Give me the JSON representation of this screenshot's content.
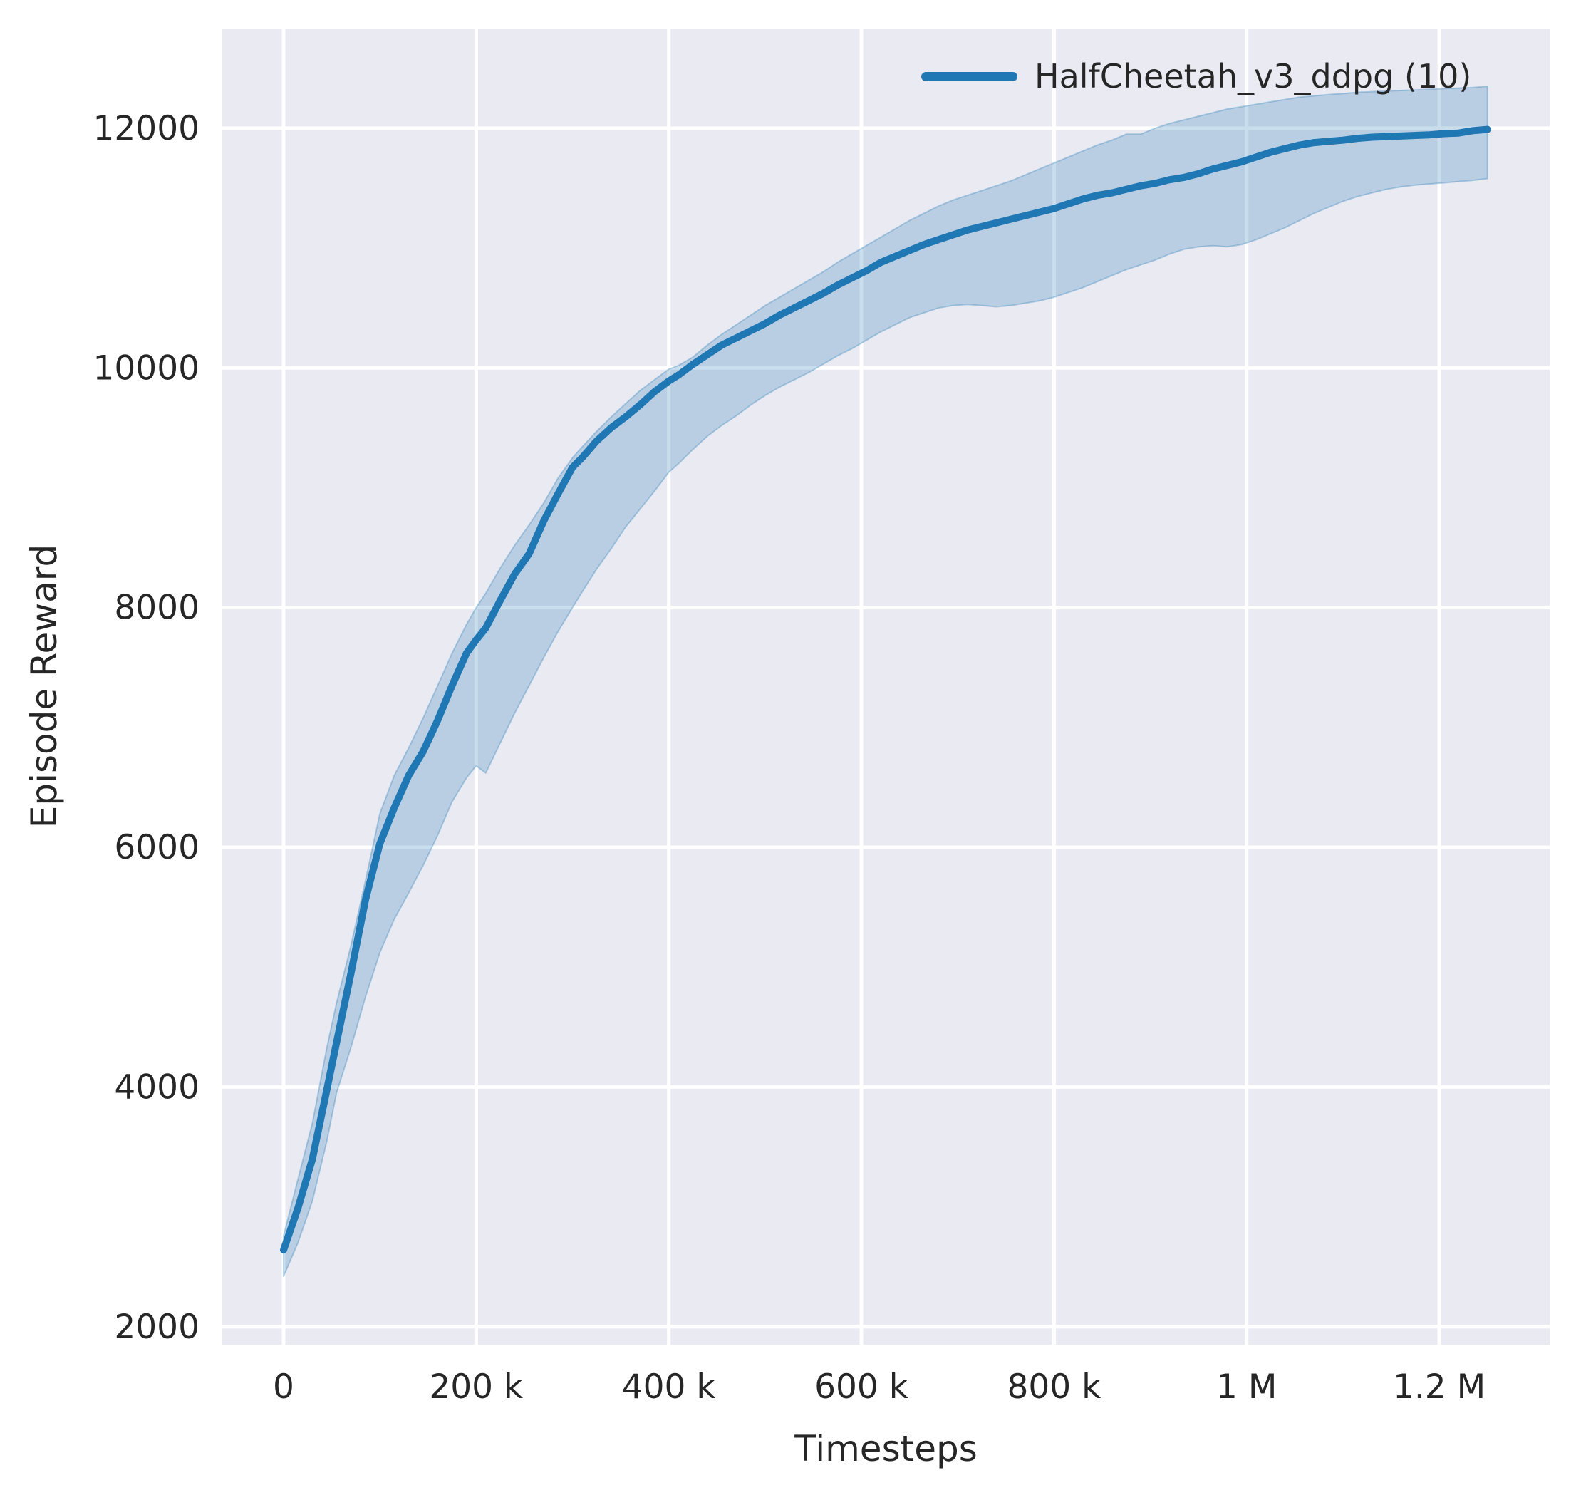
{
  "figure": {
    "background": "#ffffff",
    "plot_background": "#eaeaf2",
    "grid_color": "#ffffff",
    "text_color": "#262626"
  },
  "chart_data": {
    "type": "line",
    "title": "",
    "xlabel": "Timesteps",
    "ylabel": "Episode Reward",
    "grid": true,
    "legend_position": "upper right",
    "legend": [
      {
        "label": "HalfCheetah_v3_ddpg (10)",
        "color": "#1f77b4"
      }
    ],
    "xlim": [
      -63600,
      1314600
    ],
    "ylim": [
      1850,
      12832
    ],
    "x_ticks": [
      {
        "v": 0,
        "label": "0"
      },
      {
        "v": 200000,
        "label": "200 k"
      },
      {
        "v": 400000,
        "label": "400 k"
      },
      {
        "v": 600000,
        "label": "600 k"
      },
      {
        "v": 800000,
        "label": "800 k"
      },
      {
        "v": 1000000,
        "label": "1 M"
      },
      {
        "v": 1200000,
        "label": "1.2 M"
      }
    ],
    "y_ticks": [
      {
        "v": 2000,
        "label": "2000"
      },
      {
        "v": 4000,
        "label": "4000"
      },
      {
        "v": 6000,
        "label": "6000"
      },
      {
        "v": 8000,
        "label": "8000"
      },
      {
        "v": 10000,
        "label": "10000"
      },
      {
        "v": 12000,
        "label": "12000"
      }
    ],
    "series": [
      {
        "name": "HalfCheetah_v3_ddpg (10)",
        "color": "#1f77b4",
        "band_fill_alpha": 0.24,
        "band_edge_alpha": 0.3,
        "x": [
          0,
          15000,
          30000,
          45000,
          55000,
          70000,
          85000,
          100000,
          115000,
          130000,
          145000,
          160000,
          175000,
          190000,
          200000,
          210000,
          225000,
          240000,
          255000,
          270000,
          285000,
          300000,
          310000,
          325000,
          340000,
          355000,
          370000,
          385000,
          400000,
          410000,
          425000,
          440000,
          455000,
          470000,
          485000,
          500000,
          515000,
          530000,
          545000,
          560000,
          575000,
          590000,
          605000,
          620000,
          635000,
          650000,
          665000,
          680000,
          695000,
          710000,
          725000,
          740000,
          755000,
          770000,
          785000,
          800000,
          815000,
          830000,
          845000,
          860000,
          875000,
          890000,
          905000,
          920000,
          935000,
          950000,
          965000,
          980000,
          995000,
          1010000,
          1025000,
          1040000,
          1055000,
          1070000,
          1085000,
          1100000,
          1115000,
          1130000,
          1145000,
          1160000,
          1175000,
          1190000,
          1205000,
          1220000,
          1235000,
          1250000
        ],
        "mean": [
          2640,
          2990,
          3400,
          3980,
          4370,
          4950,
          5560,
          6030,
          6330,
          6600,
          6800,
          7060,
          7350,
          7620,
          7730,
          7830,
          8060,
          8280,
          8450,
          8720,
          8950,
          9170,
          9250,
          9390,
          9500,
          9590,
          9690,
          9800,
          9890,
          9940,
          10030,
          10110,
          10190,
          10250,
          10310,
          10370,
          10440,
          10500,
          10560,
          10620,
          10690,
          10750,
          10810,
          10880,
          10930,
          10980,
          11030,
          11070,
          11110,
          11150,
          11180,
          11210,
          11240,
          11270,
          11300,
          11330,
          11370,
          11410,
          11440,
          11460,
          11490,
          11520,
          11540,
          11570,
          11590,
          11620,
          11660,
          11690,
          11720,
          11760,
          11800,
          11830,
          11860,
          11880,
          11890,
          11900,
          11915,
          11925,
          11930,
          11935,
          11940,
          11945,
          11955,
          11960,
          11980,
          11990
        ],
        "lower": [
          2420,
          2700,
          3050,
          3550,
          3950,
          4330,
          4750,
          5120,
          5400,
          5620,
          5850,
          6100,
          6380,
          6580,
          6680,
          6620,
          6870,
          7120,
          7350,
          7580,
          7800,
          8000,
          8130,
          8320,
          8490,
          8670,
          8820,
          8970,
          9130,
          9200,
          9320,
          9430,
          9520,
          9600,
          9690,
          9770,
          9840,
          9900,
          9960,
          10030,
          10100,
          10160,
          10230,
          10300,
          10360,
          10420,
          10460,
          10500,
          10520,
          10530,
          10520,
          10510,
          10520,
          10540,
          10560,
          10590,
          10630,
          10670,
          10720,
          10770,
          10820,
          10860,
          10900,
          10950,
          10990,
          11010,
          11020,
          11010,
          11030,
          11070,
          11120,
          11170,
          11230,
          11290,
          11340,
          11390,
          11430,
          11460,
          11490,
          11510,
          11525,
          11535,
          11545,
          11555,
          11565,
          11580
        ],
        "upper": [
          2760,
          3230,
          3700,
          4330,
          4700,
          5180,
          5720,
          6280,
          6600,
          6830,
          7080,
          7350,
          7620,
          7860,
          8000,
          8120,
          8330,
          8520,
          8690,
          8870,
          9080,
          9250,
          9340,
          9470,
          9590,
          9700,
          9810,
          9900,
          9990,
          10020,
          10090,
          10190,
          10280,
          10360,
          10440,
          10520,
          10590,
          10660,
          10730,
          10800,
          10880,
          10950,
          11020,
          11090,
          11160,
          11230,
          11290,
          11350,
          11400,
          11440,
          11480,
          11520,
          11560,
          11610,
          11660,
          11710,
          11760,
          11810,
          11860,
          11900,
          11950,
          11950,
          12000,
          12040,
          12070,
          12100,
          12130,
          12160,
          12180,
          12200,
          12220,
          12240,
          12260,
          12270,
          12280,
          12290,
          12300,
          12305,
          12310,
          12315,
          12320,
          12325,
          12330,
          12335,
          12340,
          12350
        ]
      }
    ]
  }
}
